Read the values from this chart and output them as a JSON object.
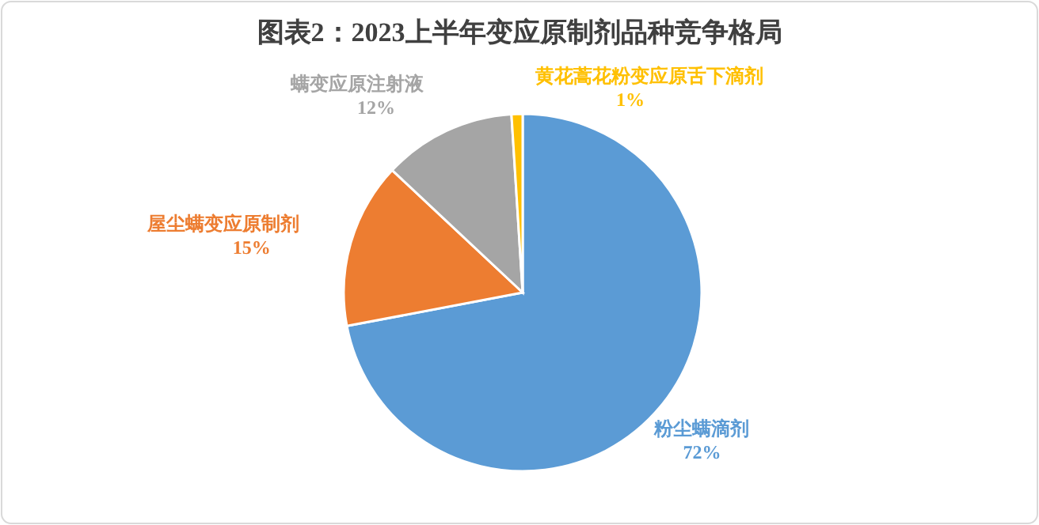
{
  "chart_data": {
    "type": "pie",
    "title": "图表2：2023上半年变应原制剂品种竞争格局",
    "categories": [
      "粉尘螨滴剂",
      "屋尘螨变应原制剂",
      "螨变应原注射液",
      "黄花蒿花粉变应原舌下滴剂"
    ],
    "values": [
      72,
      15,
      12,
      1
    ],
    "value_labels": [
      "72%",
      "15%",
      "12%",
      "1%"
    ],
    "colors": [
      "#5b9bd5",
      "#ed7d31",
      "#a5a5a5",
      "#ffc000"
    ]
  }
}
